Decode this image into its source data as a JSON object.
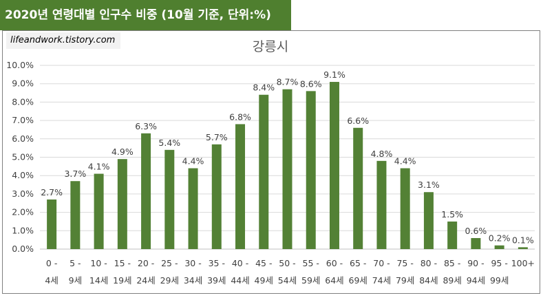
{
  "header": {
    "title": "2020년 연령대별 인구수 비중 (10월 기준, 단위:%)"
  },
  "watermark": "lifeandwork.tistory.com",
  "colors": {
    "title_bg": "#4f7f2f",
    "bar": "#538135",
    "gridline": "#d9d9d9",
    "axis_text": "#404040"
  },
  "chart_data": {
    "type": "bar",
    "title": "강릉시",
    "xlabel": "",
    "ylabel": "",
    "ylim": [
      0,
      10
    ],
    "y_ticks": [
      "0.0%",
      "1.0%",
      "2.0%",
      "3.0%",
      "4.0%",
      "5.0%",
      "6.0%",
      "7.0%",
      "8.0%",
      "9.0%",
      "10.0%"
    ],
    "grid": true,
    "categories": [
      {
        "top": "0 -",
        "bottom": "4세"
      },
      {
        "top": "5 -",
        "bottom": "9세"
      },
      {
        "top": "10 -",
        "bottom": "14세"
      },
      {
        "top": "15 -",
        "bottom": "19세"
      },
      {
        "top": "20 -",
        "bottom": "24세"
      },
      {
        "top": "25 -",
        "bottom": "29세"
      },
      {
        "top": "30 -",
        "bottom": "34세"
      },
      {
        "top": "35 -",
        "bottom": "39세"
      },
      {
        "top": "40 -",
        "bottom": "44세"
      },
      {
        "top": "45 -",
        "bottom": "49세"
      },
      {
        "top": "50 -",
        "bottom": "54세"
      },
      {
        "top": "55 -",
        "bottom": "59세"
      },
      {
        "top": "60 -",
        "bottom": "64세"
      },
      {
        "top": "65 -",
        "bottom": "69세"
      },
      {
        "top": "70 -",
        "bottom": "74세"
      },
      {
        "top": "75 -",
        "bottom": "79세"
      },
      {
        "top": "80 -",
        "bottom": "84세"
      },
      {
        "top": "85 -",
        "bottom": "89세"
      },
      {
        "top": "90 -",
        "bottom": "94세"
      },
      {
        "top": "95 -",
        "bottom": "99세"
      },
      {
        "top": "100+",
        "bottom": ""
      }
    ],
    "values": [
      2.7,
      3.7,
      4.1,
      4.9,
      6.3,
      5.4,
      4.4,
      5.7,
      6.8,
      8.4,
      8.7,
      8.6,
      9.1,
      6.6,
      4.8,
      4.4,
      3.1,
      1.5,
      0.6,
      0.2,
      0.1
    ],
    "labels": [
      "2.7%",
      "3.7%",
      "4.1%",
      "4.9%",
      "6.3%",
      "5.4%",
      "4.4%",
      "5.7%",
      "6.8%",
      "8.4%",
      "8.7%",
      "8.6%",
      "9.1%",
      "6.6%",
      "4.8%",
      "4.4%",
      "3.1%",
      "1.5%",
      "0.6%",
      "0.2%",
      "0.1%"
    ]
  }
}
